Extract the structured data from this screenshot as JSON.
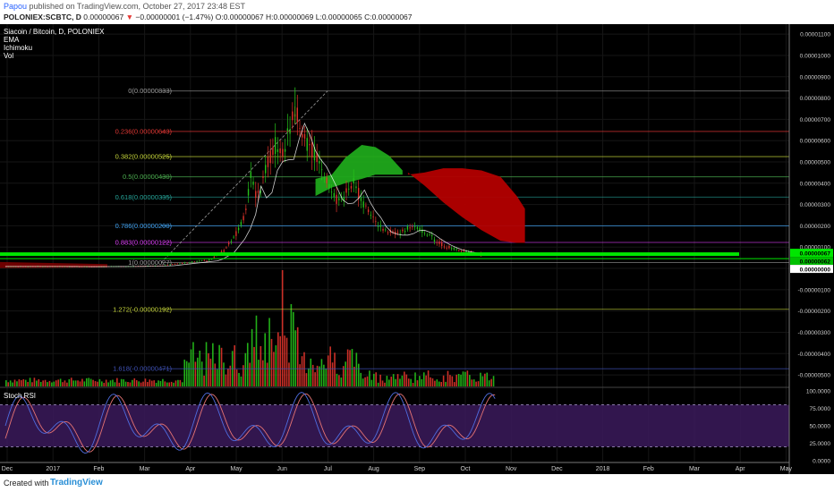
{
  "header": {
    "author": "Papou",
    "published_text": " published on TradingView.com, October 27, 2017 23:48 EST",
    "symbol": "POLONIEX:SCBTC, D",
    "last_price": "0.00000067",
    "change": "−0.00000001 (−1.47%)",
    "ohlc": "O:0.00000067 H:0.00000069 L:0.00000065 C:0.00000067"
  },
  "legend": {
    "title": "Siacoin / Bitcoin, D, POLONIEX",
    "indicators": [
      "EMA",
      "Ichimoku",
      "Vol"
    ],
    "oscillator": "Stoch RSI"
  },
  "footer": {
    "created": "Created with",
    "brand": "TradingView"
  },
  "colors": {
    "up": "#26c21b",
    "down": "#e0342b",
    "cloud_bull": "#1fa81b",
    "cloud_bear": "#b30000",
    "ema": "#ffffff",
    "rsi_k": "#4f6de0",
    "rsi_d": "#e57373"
  },
  "chart_data": [
    {
      "type": "line",
      "title": "Siacoin / Bitcoin, D, POLONIEX",
      "x_ticks": [
        "Dec",
        "2017",
        "Feb",
        "Mar",
        "Apr",
        "May",
        "Jun",
        "Jul",
        "Aug",
        "Sep",
        "Oct",
        "Nov",
        "Dec",
        "2018",
        "Feb",
        "Mar",
        "Apr",
        "May"
      ],
      "y_range": [
        -5.5e-06,
        1.13e-05
      ],
      "y_ticks": [
        "0.00001100",
        "0.00001000",
        "0.00000900",
        "0.00000800",
        "0.00000700",
        "0.00000600",
        "0.00000500",
        "0.00000400",
        "0.00000300",
        "0.00000200",
        "0.00000100",
        "0.00000000",
        "-0.00000100",
        "-0.00000200",
        "-0.00000300",
        "-0.00000400",
        "-0.00000500"
      ],
      "price_label": "0.00000067",
      "price_label2": "0.00000062",
      "price_label3": "0.00000000",
      "fib_levels": [
        {
          "label": "0(0.00000833)",
          "value": 8.33e-06,
          "color": "#9e9e9e"
        },
        {
          "label": "0.236(0.00000643)",
          "value": 6.43e-06,
          "color": "#e53935"
        },
        {
          "label": "0.382(0.00000525)",
          "value": 5.25e-06,
          "color": "#c6d63a"
        },
        {
          "label": "0.5(0.00000430)",
          "value": 4.3e-06,
          "color": "#4caf50"
        },
        {
          "label": "0.618(0.00000335)",
          "value": 3.35e-06,
          "color": "#26a69a"
        },
        {
          "label": "0.786(0.00000200)",
          "value": 2e-06,
          "color": "#42a5f5"
        },
        {
          "label": "0.883(0.00000122)",
          "value": 1.22e-06,
          "color": "#e040fb"
        },
        {
          "label": "1(0.00000027)",
          "value": 2.7e-07,
          "color": "#9e9e9e"
        },
        {
          "label": "1.272(-0.00000192)",
          "value": -1.92e-06,
          "color": "#c6d63a"
        },
        {
          "label": "1.618(-0.00000471)",
          "value": -4.71e-06,
          "color": "#3f51b5"
        }
      ],
      "price_series": [
        {
          "d": 0,
          "v": 1e-07
        },
        {
          "d": 30,
          "v": 1e-07
        },
        {
          "d": 60,
          "v": 9e-08
        },
        {
          "d": 90,
          "v": 1e-07
        },
        {
          "d": 115,
          "v": 1.3e-07
        },
        {
          "d": 130,
          "v": 2.5e-07
        },
        {
          "d": 150,
          "v": 4e-07
        },
        {
          "d": 160,
          "v": 8e-07
        },
        {
          "d": 168,
          "v": 1.5e-06
        },
        {
          "d": 175,
          "v": 2.4e-06
        },
        {
          "d": 180,
          "v": 4.2e-06
        },
        {
          "d": 186,
          "v": 3.3e-06
        },
        {
          "d": 192,
          "v": 5e-06
        },
        {
          "d": 198,
          "v": 5.7e-06
        },
        {
          "d": 203,
          "v": 5.3e-06
        },
        {
          "d": 208,
          "v": 6.6e-06
        },
        {
          "d": 212,
          "v": 7.4e-06
        },
        {
          "d": 216,
          "v": 6.8e-06
        },
        {
          "d": 221,
          "v": 5.8e-06
        },
        {
          "d": 228,
          "v": 5.2e-06
        },
        {
          "d": 234,
          "v": 4.4e-06
        },
        {
          "d": 240,
          "v": 3.5e-06
        },
        {
          "d": 246,
          "v": 3.2e-06
        },
        {
          "d": 252,
          "v": 3.6e-06
        },
        {
          "d": 256,
          "v": 4e-06
        },
        {
          "d": 262,
          "v": 3.1e-06
        },
        {
          "d": 268,
          "v": 2.6e-06
        },
        {
          "d": 274,
          "v": 1.9e-06
        },
        {
          "d": 282,
          "v": 1.7e-06
        },
        {
          "d": 290,
          "v": 1.7e-06
        },
        {
          "d": 298,
          "v": 2e-06
        },
        {
          "d": 306,
          "v": 1.8e-06
        },
        {
          "d": 314,
          "v": 1.4e-06
        },
        {
          "d": 322,
          "v": 1.1e-06
        },
        {
          "d": 330,
          "v": 9e-07
        },
        {
          "d": 338,
          "v": 8e-07
        },
        {
          "d": 345,
          "v": 7e-07
        },
        {
          "d": 350,
          "v": 6.7e-07
        }
      ],
      "cloud_bull": [
        {
          "d": 228,
          "a": 4.2e-06,
          "b": 3.4e-06
        },
        {
          "d": 240,
          "a": 4.4e-06,
          "b": 3.8e-06
        },
        {
          "d": 250,
          "a": 5.2e-06,
          "b": 4e-06
        },
        {
          "d": 262,
          "a": 5.8e-06,
          "b": 4.2e-06
        },
        {
          "d": 272,
          "a": 5.7e-06,
          "b": 4.4e-06
        },
        {
          "d": 282,
          "a": 5.3e-06,
          "b": 4.4e-06
        },
        {
          "d": 292,
          "a": 4.6e-06,
          "b": 4.4e-06
        }
      ],
      "cloud_bear": [
        {
          "d": 296,
          "a": 4.4e-06,
          "b": 4.5e-06
        },
        {
          "d": 308,
          "a": 4.5e-06,
          "b": 3.9e-06
        },
        {
          "d": 322,
          "a": 4.7e-06,
          "b": 3.1e-06
        },
        {
          "d": 336,
          "a": 4.7e-06,
          "b": 2.4e-06
        },
        {
          "d": 350,
          "a": 4.6e-06,
          "b": 1.8e-06
        },
        {
          "d": 364,
          "a": 4.3e-06,
          "b": 1.3e-06
        },
        {
          "d": 376,
          "a": 3.4e-06,
          "b": 1.2e-06
        },
        {
          "d": 382,
          "a": 2.8e-06,
          "b": 1.2e-06
        }
      ]
    },
    {
      "type": "line",
      "title": "Stoch RSI",
      "y_range": [
        0,
        100
      ],
      "y_ticks": [
        "100.0000",
        "75.0000",
        "50.0000",
        "25.0000",
        "0.0000"
      ],
      "bands": [
        80,
        20
      ]
    }
  ]
}
